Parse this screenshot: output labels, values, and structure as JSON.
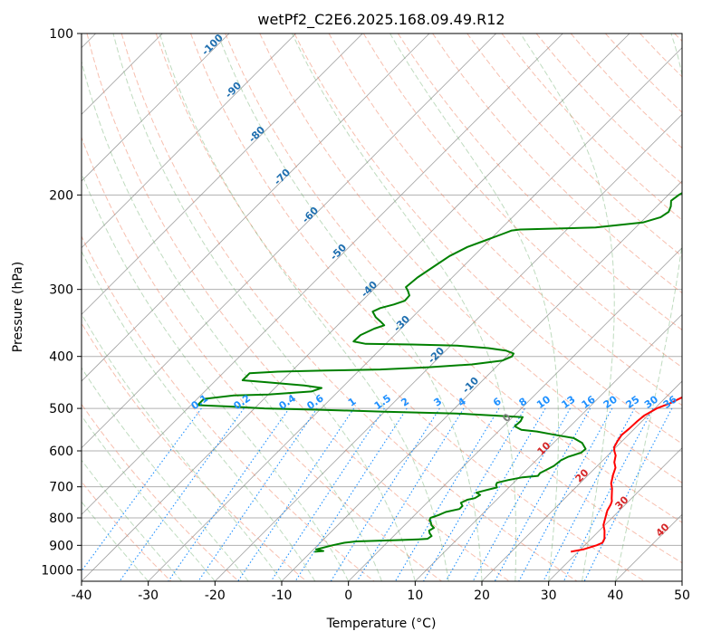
{
  "chart_data": {
    "type": "line",
    "title": "wetPf2_C2E6.2025.168.09.49.R12",
    "xlabel": "Temperature (°C)",
    "ylabel": "Pressure (hPa)",
    "xlim": [
      -40,
      50
    ],
    "ylim": [
      1050,
      100
    ],
    "y_scale": "log",
    "x_ticks": [
      -40,
      -30,
      -20,
      -10,
      0,
      10,
      20,
      30,
      40,
      50
    ],
    "y_ticks": [
      100,
      200,
      300,
      400,
      500,
      600,
      700,
      800,
      900,
      1000
    ],
    "grid": true,
    "colors": {
      "temperature": "#ff0000",
      "dewpoint": "#008000",
      "isotherm": "#808080",
      "dry_adiabat": "#f08060",
      "moist_adiabat": "#70b070",
      "mixing_ratio": "#1e90ff",
      "isotherm_label": "#1f6fb0",
      "theta_label": "#d62728"
    },
    "series": [
      {
        "points": [
          [
            28.9,
            925
          ],
          [
            30.5,
            915
          ],
          [
            31.8,
            900
          ],
          [
            32.3,
            890
          ],
          [
            32.0,
            875
          ],
          [
            30.8,
            845
          ],
          [
            29.8,
            825
          ],
          [
            29.0,
            800
          ],
          [
            28.2,
            775
          ],
          [
            27.8,
            755
          ],
          [
            27.5,
            745
          ],
          [
            27.0,
            735
          ],
          [
            26.3,
            720
          ],
          [
            25.6,
            705
          ],
          [
            24.7,
            690
          ],
          [
            23.7,
            665
          ],
          [
            23.0,
            645
          ],
          [
            22.0,
            630
          ],
          [
            21.2,
            612
          ],
          [
            20.3,
            600
          ],
          [
            19.7,
            590
          ],
          [
            19.3,
            575
          ],
          [
            19.0,
            560
          ],
          [
            19.2,
            545
          ],
          [
            19.3,
            528
          ],
          [
            19.5,
            515
          ],
          [
            20.3,
            500
          ],
          [
            21.6,
            488
          ],
          [
            22.5,
            476
          ],
          [
            22.6,
            460
          ],
          [
            22.0,
            440
          ],
          [
            21.5,
            425
          ],
          [
            21.2,
            405
          ],
          [
            20.8,
            392
          ],
          [
            20.3,
            380
          ],
          [
            19.7,
            370
          ],
          [
            19.0,
            362
          ],
          [
            18.6,
            350
          ],
          [
            18.0,
            335
          ],
          [
            16.8,
            320
          ],
          [
            15.3,
            305
          ],
          [
            13.8,
            290
          ],
          [
            12.3,
            275
          ],
          [
            11.3,
            262
          ],
          [
            10.3,
            248
          ],
          [
            9.4,
            237
          ],
          [
            7.8,
            225
          ],
          [
            6.2,
            212
          ],
          [
            4.8,
            200
          ],
          [
            3.6,
            190
          ],
          [
            2.7,
            180
          ],
          [
            1.9,
            170
          ],
          [
            1.1,
            160
          ],
          [
            0.3,
            152
          ],
          [
            -0.3,
            145
          ],
          [
            -0.6,
            138
          ],
          [
            -0.5,
            130
          ],
          [
            -0.3,
            122
          ],
          [
            0.2,
            115
          ],
          [
            0.9,
            109
          ],
          [
            1.6,
            104
          ],
          [
            2.3,
            100
          ]
        ]
      },
      {
        "points": [
          [
            -9.5,
            925
          ],
          [
            -8.3,
            922
          ],
          [
            -9.6,
            916
          ],
          [
            -7.8,
            900
          ],
          [
            -6.4,
            890
          ],
          [
            -4.8,
            885
          ],
          [
            1.0,
            880
          ],
          [
            4.2,
            877
          ],
          [
            5.5,
            875
          ],
          [
            5.7,
            865
          ],
          [
            5.0,
            855
          ],
          [
            4.5,
            845
          ],
          [
            4.8,
            835
          ],
          [
            4.0,
            825
          ],
          [
            3.5,
            815
          ],
          [
            3.0,
            808
          ],
          [
            2.8,
            800
          ],
          [
            3.6,
            790
          ],
          [
            4.2,
            780
          ],
          [
            5.8,
            770
          ],
          [
            5.8,
            760
          ],
          [
            5.1,
            750
          ],
          [
            5.6,
            740
          ],
          [
            6.5,
            735
          ],
          [
            6.8,
            725
          ],
          [
            5.9,
            718
          ],
          [
            7.0,
            710
          ],
          [
            8.2,
            702
          ],
          [
            7.7,
            695
          ],
          [
            7.5,
            688
          ],
          [
            8.8,
            680
          ],
          [
            10.5,
            672
          ],
          [
            12.6,
            668
          ],
          [
            12.5,
            660
          ],
          [
            13.0,
            650
          ],
          [
            13.5,
            640
          ],
          [
            13.7,
            625
          ],
          [
            14.3,
            615
          ],
          [
            15.6,
            605
          ],
          [
            15.7,
            595
          ],
          [
            14.3,
            580
          ],
          [
            12.3,
            568
          ],
          [
            9.0,
            560
          ],
          [
            5.8,
            552
          ],
          [
            3.2,
            548
          ],
          [
            1.7,
            540
          ],
          [
            1.8,
            528
          ],
          [
            1.5,
            519
          ],
          [
            -9.0,
            511
          ],
          [
            -20.0,
            507
          ],
          [
            -30.0,
            503
          ],
          [
            -38.5,
            500
          ],
          [
            -44.0,
            496
          ],
          [
            -49.0,
            493
          ],
          [
            -49.0,
            480
          ],
          [
            -45.0,
            473
          ],
          [
            -40.0,
            471
          ],
          [
            -34.0,
            465
          ],
          [
            -33.0,
            458
          ],
          [
            -36.0,
            453
          ],
          [
            -39.0,
            450
          ],
          [
            -42.0,
            447
          ],
          [
            -46.0,
            443
          ],
          [
            -46.0,
            430
          ],
          [
            -42.0,
            427
          ],
          [
            -35.0,
            425
          ],
          [
            -27.0,
            423
          ],
          [
            -20.0,
            419
          ],
          [
            -14.0,
            414
          ],
          [
            -10.0,
            407
          ],
          [
            -9.2,
            400
          ],
          [
            -9.4,
            395
          ],
          [
            -11.0,
            390
          ],
          [
            -14.0,
            386
          ],
          [
            -19.0,
            382
          ],
          [
            -26.0,
            380
          ],
          [
            -33.0,
            379
          ],
          [
            -35.2,
            375
          ],
          [
            -35.1,
            365
          ],
          [
            -34.0,
            355
          ],
          [
            -33.0,
            350
          ],
          [
            -34.0,
            345
          ],
          [
            -35.5,
            338
          ],
          [
            -36.8,
            330
          ],
          [
            -36.2,
            325
          ],
          [
            -34.7,
            320
          ],
          [
            -33.6,
            315
          ],
          [
            -33.7,
            308
          ],
          [
            -34.6,
            302
          ],
          [
            -35.5,
            297
          ],
          [
            -35.2,
            285
          ],
          [
            -34.4,
            272
          ],
          [
            -33.6,
            260
          ],
          [
            -32.3,
            250
          ],
          [
            -30.6,
            243
          ],
          [
            -29.1,
            237
          ],
          [
            -28.1,
            233
          ],
          [
            -27.0,
            232
          ],
          [
            -16.0,
            230
          ],
          [
            -9.6,
            225
          ],
          [
            -7.8,
            220
          ],
          [
            -7.4,
            215
          ],
          [
            -7.9,
            210
          ],
          [
            -8.7,
            205
          ],
          [
            -8.4,
            200
          ],
          [
            -7.7,
            195
          ],
          [
            -6.7,
            190
          ],
          [
            -4.6,
            185
          ],
          [
            -3.3,
            180
          ],
          [
            -3.5,
            172
          ],
          [
            -2.5,
            165
          ],
          [
            -0.8,
            158
          ],
          [
            0.7,
            152
          ],
          [
            1.1,
            146
          ],
          [
            0.5,
            140
          ],
          [
            -0.5,
            135
          ],
          [
            -0.6,
            129
          ],
          [
            -0.3,
            121
          ],
          [
            0.4,
            113
          ],
          [
            1.0,
            105
          ],
          [
            1.4,
            100
          ]
        ]
      }
    ],
    "mixing_ratio_labels": [
      "0.1",
      "0.2",
      "0.4",
      "0.6",
      "1",
      "1.5",
      "2",
      "3",
      "4",
      "6",
      "8",
      "10",
      "13",
      "16",
      "20",
      "25",
      "30",
      "36"
    ],
    "isotherm_labels": [
      "-100",
      "-90",
      "-80",
      "-70",
      "-60",
      "-50",
      "-40",
      "-30",
      "-20",
      "-10",
      "0"
    ],
    "theta_labels": [
      "10",
      "20",
      "30",
      "40"
    ]
  }
}
